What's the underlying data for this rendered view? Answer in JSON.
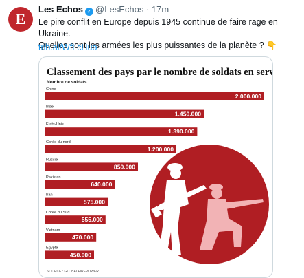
{
  "tweet": {
    "avatar_letter": "E",
    "author_name": "Les Echos",
    "handle": "@LesEchos",
    "separator": "·",
    "time": "17m",
    "text_line1": "Le pire conflit en Europe depuis 1945 continue de faire rage en Ukraine.",
    "text_line2": "Quelles sont les armées les plus puissantes de la planète ? 👇",
    "link": "trib.al/WfLcHuo"
  },
  "colors": {
    "accent": "#b01e23",
    "link": "#1d9bf0",
    "verified": "#1d9bf0",
    "bar_label": "#ffffff",
    "avatar": "#c0272d"
  },
  "chart_data": {
    "type": "bar",
    "orientation": "horizontal",
    "title": "Classement des pays par le nombre de soldats en service",
    "subtitle": "Nombre de soldats",
    "categories": [
      "Chine",
      "Inde",
      "Etats-Unis",
      "Corée du nord",
      "Russie",
      "Pakistan",
      "Iran",
      "Corée du Sud",
      "Vietnam",
      "Egypte"
    ],
    "values": [
      2000000,
      1450000,
      1390000,
      1200000,
      850000,
      640000,
      575000,
      555000,
      470000,
      450000
    ],
    "value_labels": [
      "2.000.000",
      "1.450.000",
      "1.390.000",
      "1.200.000",
      "850.000",
      "640.000",
      "575.000",
      "555.000",
      "470.000",
      "450.000"
    ],
    "xlim": [
      0,
      2000000
    ],
    "source": "SOURCE : GLOBALFIREPOWER",
    "grid": false,
    "legend": "none",
    "illustration": "soldiers-silhouette-in-red-circle"
  }
}
